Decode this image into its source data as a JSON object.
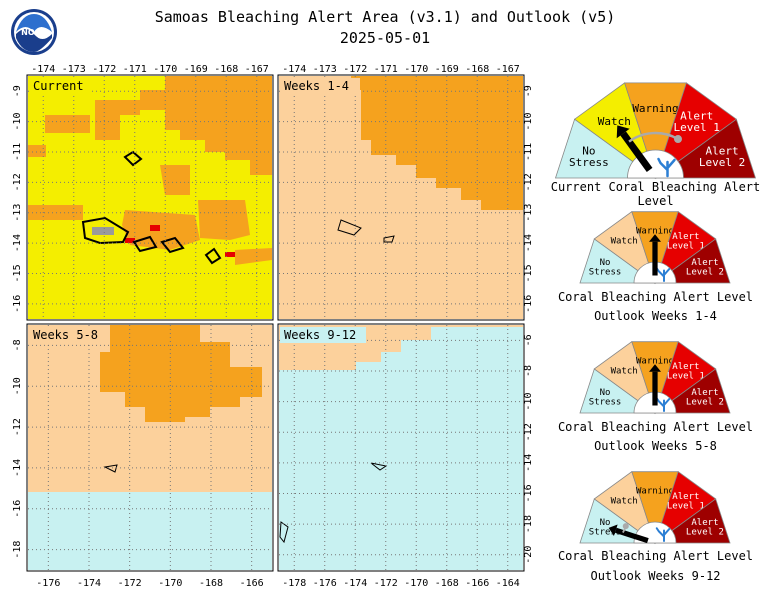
{
  "header": {
    "title": "Samoas Bleaching Alert Area (v3.1) and Outlook (v5)",
    "date": "2025-05-01",
    "logo_text": "NOAA"
  },
  "colors": {
    "no_stress": "#c8f1f1",
    "watch": "#f4ee00",
    "watch_outlook": "#fcd19c",
    "warning": "#f5a21e",
    "alert1": "#e60000",
    "alert2": "#9e0000"
  },
  "panels": [
    {
      "label": "Current",
      "top_ticks": [
        "-174",
        "-173",
        "-172",
        "-171",
        "-170",
        "-169",
        "-168",
        "-167"
      ],
      "left_ticks": [
        "-9",
        "-10",
        "-11",
        "-12",
        "-13",
        "-14",
        "-15",
        "-16"
      ]
    },
    {
      "label": "Weeks 1-4",
      "top_ticks": [
        "-174",
        "-173",
        "-172",
        "-171",
        "-170",
        "-169",
        "-168",
        "-167"
      ],
      "right_ticks": [
        "-9",
        "-10",
        "-11",
        "-12",
        "-13",
        "-14",
        "-15",
        "-16"
      ]
    },
    {
      "label": "Weeks 5-8",
      "bottom_ticks": [
        "-176",
        "-174",
        "-172",
        "-170",
        "-168",
        "-166"
      ],
      "left_ticks": [
        "-8",
        "-10",
        "-12",
        "-14",
        "-16",
        "-18"
      ]
    },
    {
      "label": "Weeks 9-12",
      "bottom_ticks": [
        "-178",
        "-176",
        "-174",
        "-172",
        "-170",
        "-168",
        "-166",
        "-164"
      ],
      "right_ticks": [
        "-6",
        "-8",
        "-10",
        "-12",
        "-14",
        "-16",
        "-18",
        "-20"
      ]
    }
  ],
  "gauges": [
    {
      "caption1": "Current Coral Bleaching Alert Level",
      "caption2": "",
      "level": "Watch"
    },
    {
      "caption1": "Coral Bleaching Alert Level",
      "caption2": "Outlook Weeks 1-4",
      "level": "Warning"
    },
    {
      "caption1": "Coral Bleaching Alert Level",
      "caption2": "Outlook Weeks 5-8",
      "level": "Warning"
    },
    {
      "caption1": "Coral Bleaching Alert Level",
      "caption2": "Outlook Weeks 9-12",
      "level": "No Stress"
    }
  ],
  "gauge_labels": {
    "no_stress": [
      "No",
      "Stress"
    ],
    "watch": "Watch",
    "warning": "Warning",
    "alert1": [
      "Alert",
      "Level 1"
    ],
    "alert2": [
      "Alert",
      "Level 2"
    ]
  }
}
